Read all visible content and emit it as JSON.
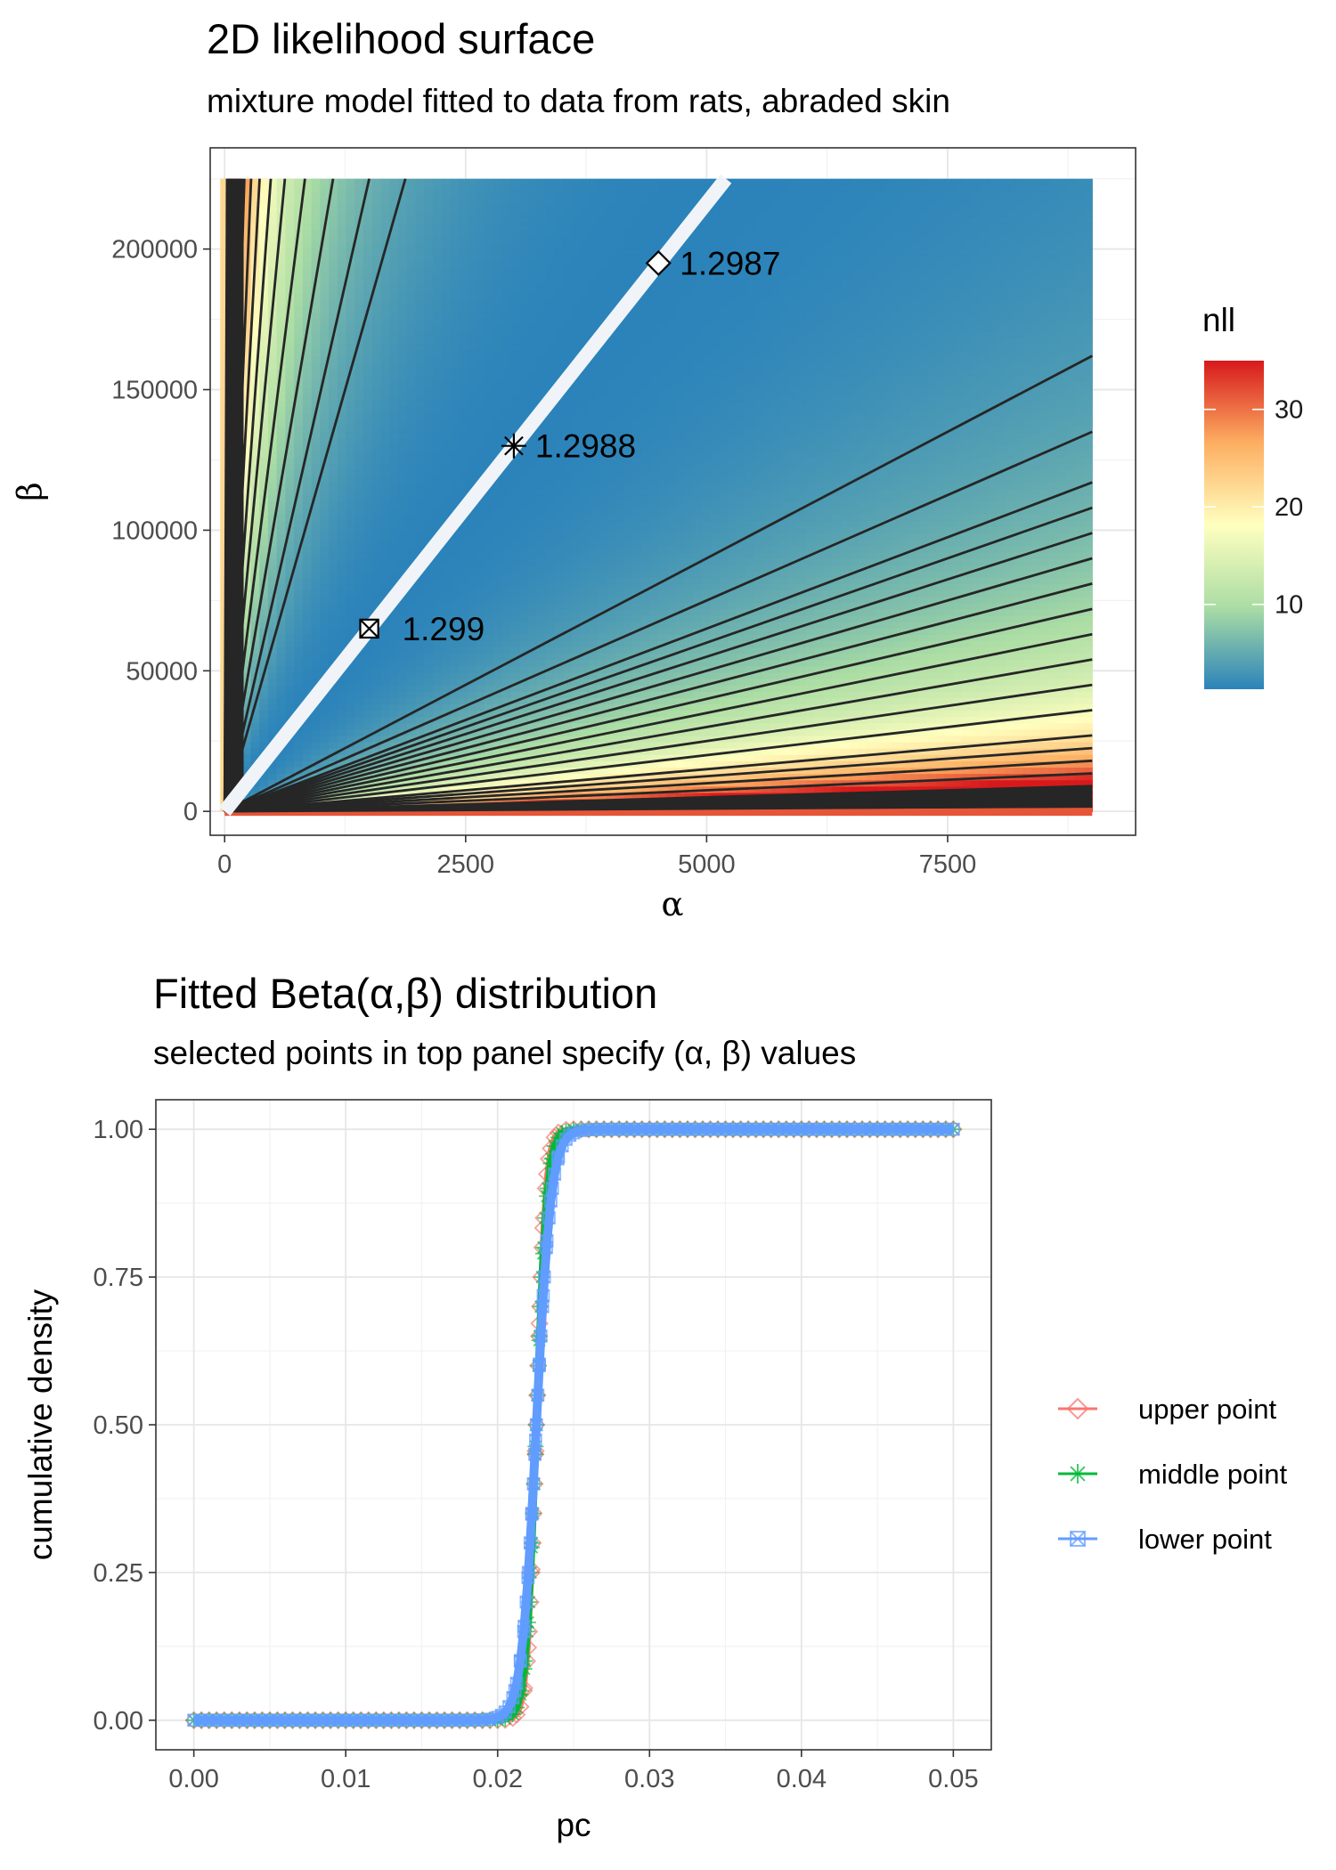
{
  "chart_data": [
    {
      "type": "heatmap",
      "title": "2D likelihood surface",
      "subtitle": "mixture model fitted to data from rats, abraded skin",
      "xlabel": "α",
      "ylabel": "β",
      "xlim": [
        -150,
        9450
      ],
      "ylim": [
        -8500,
        236000
      ],
      "x_ticks": [
        {
          "value": 0,
          "label": "0"
        },
        {
          "value": 2500,
          "label": "2500"
        },
        {
          "value": 5000,
          "label": "5000"
        },
        {
          "value": 7500,
          "label": "7500"
        }
      ],
      "y_ticks": [
        {
          "value": 0,
          "label": "0"
        },
        {
          "value": 50000,
          "label": "50000"
        },
        {
          "value": 100000,
          "label": "100000"
        },
        {
          "value": 150000,
          "label": "150000"
        },
        {
          "value": 200000,
          "label": "200000"
        }
      ],
      "grid": true,
      "legend": {
        "title": "nll",
        "position": "right",
        "range": [
          1.3,
          35
        ],
        "ticks": [
          {
            "value": 10,
            "label": "10"
          },
          {
            "value": 20,
            "label": "20"
          },
          {
            "value": 30,
            "label": "30"
          }
        ],
        "colors": [
          "#2B83BA",
          "#ABDDA4",
          "#FFFFBF",
          "#FDAE61",
          "#D7191C"
        ]
      },
      "surface": {
        "alpha_range": [
          0,
          9000
        ],
        "beta_range": [
          0,
          225000
        ],
        "optimum_ratio": 43.3
      },
      "ridge": {
        "from": [
          0,
          0
        ],
        "to": [
          5200,
          225000
        ],
        "color": "#F0F4F8"
      },
      "contour_slopes_low": [
        18,
        15,
        13,
        12,
        11,
        10,
        9,
        8,
        7,
        6,
        5,
        4,
        3,
        2.5,
        2,
        1.5,
        1,
        0.5,
        0.2
      ],
      "contour_slopes_high": [
        120,
        150,
        200,
        270,
        360,
        470,
        620,
        820,
        1100,
        1500,
        2000,
        2800,
        4000,
        6000,
        9000
      ],
      "points": [
        {
          "name": "upper point",
          "alpha": 4500,
          "beta": 195000,
          "nll_label": "1.2987",
          "shape": "diamond"
        },
        {
          "name": "middle point",
          "alpha": 3000,
          "beta": 130000,
          "nll_label": "1.2988",
          "shape": "asterisk"
        },
        {
          "name": "lower point",
          "alpha": 1500,
          "beta": 65000,
          "nll_label": "1.299",
          "shape": "boxed-x"
        }
      ]
    },
    {
      "type": "line",
      "title": "Fitted Beta(α,β) distribution",
      "subtitle": "selected points in top panel specify (α, β) values",
      "xlabel": "pc",
      "ylabel": "cumulative density",
      "xlim": [
        -0.0025,
        0.0525
      ],
      "ylim": [
        -0.05,
        1.05
      ],
      "x_ticks": [
        {
          "value": 0,
          "label": "0.00"
        },
        {
          "value": 0.01,
          "label": "0.01"
        },
        {
          "value": 0.02,
          "label": "0.02"
        },
        {
          "value": 0.03,
          "label": "0.03"
        },
        {
          "value": 0.04,
          "label": "0.04"
        },
        {
          "value": 0.05,
          "label": "0.05"
        }
      ],
      "y_ticks": [
        {
          "value": 0,
          "label": "0.00"
        },
        {
          "value": 0.25,
          "label": "0.25"
        },
        {
          "value": 0.5,
          "label": "0.50"
        },
        {
          "value": 0.75,
          "label": "0.75"
        },
        {
          "value": 1,
          "label": "1.00"
        }
      ],
      "grid": true,
      "x_range": [
        0,
        0.05
      ],
      "legend_position": "right",
      "series": [
        {
          "name": "upper point",
          "alpha": 4500,
          "beta": 195000,
          "center": 0.02255,
          "width": 0.00028,
          "color": "#F8766D",
          "marker": "diamond"
        },
        {
          "name": "middle point",
          "alpha": 3000,
          "beta": 130000,
          "center": 0.02255,
          "width": 0.00034,
          "color": "#00BA38",
          "marker": "asterisk"
        },
        {
          "name": "lower point",
          "alpha": 1500,
          "beta": 65000,
          "center": 0.02255,
          "width": 0.00048,
          "color": "#619CFF",
          "marker": "boxed-x"
        }
      ]
    }
  ]
}
